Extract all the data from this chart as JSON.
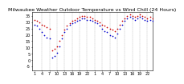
{
  "title": "Milwaukee Weather Outdoor Temperature vs Wind Chill (24 Hours)",
  "title_fontsize": 4.5,
  "x_hours": [
    1,
    2,
    3,
    4,
    5,
    6,
    7,
    8,
    9,
    10,
    11,
    12,
    13,
    14,
    15,
    16,
    17,
    18,
    19,
    20,
    21,
    22,
    23,
    24,
    25,
    26,
    27,
    28,
    29,
    30,
    31,
    32,
    33,
    34,
    35,
    36,
    37,
    38,
    39,
    40,
    41,
    42,
    43,
    44,
    45,
    46,
    47,
    48
  ],
  "temp": [
    32,
    31,
    30,
    28,
    27,
    26,
    25,
    8,
    9,
    11,
    15,
    20,
    24,
    27,
    29,
    31,
    32,
    33,
    34,
    35,
    35,
    34,
    34,
    33,
    32,
    31,
    30,
    28,
    27,
    26,
    25,
    24,
    23,
    25,
    28,
    31,
    33,
    35,
    36,
    35,
    34,
    35,
    36,
    35,
    34,
    33,
    34,
    33
  ],
  "wind_chill": [
    28,
    27,
    25,
    22,
    20,
    18,
    17,
    2,
    3,
    6,
    11,
    17,
    22,
    25,
    28,
    29,
    30,
    31,
    32,
    33,
    33,
    32,
    32,
    31,
    30,
    29,
    27,
    25,
    23,
    22,
    20,
    19,
    18,
    21,
    25,
    28,
    31,
    33,
    34,
    33,
    32,
    33,
    34,
    33,
    32,
    31,
    32,
    31
  ],
  "temp_color": "#cc0000",
  "wind_chill_color": "#0000cc",
  "bg_color": "#ffffff",
  "grid_color": "#888888",
  "ylim": [
    -8,
    38
  ],
  "ytick_vals": [
    -5,
    0,
    5,
    10,
    15,
    20,
    25,
    30,
    35
  ],
  "ytick_labels": [
    "-5",
    "0",
    "5",
    "10",
    "15",
    "20",
    "25",
    "30",
    "35"
  ],
  "xtick_positions": [
    1,
    4,
    7,
    10,
    13,
    16,
    19,
    22,
    25,
    28,
    31,
    34,
    37,
    40,
    43,
    46
  ],
  "xtick_labels": [
    "1",
    "4",
    "7",
    "10",
    "13",
    "16",
    "19",
    "22",
    "1",
    "4",
    "7",
    "10",
    "13",
    "16",
    "19",
    "22"
  ],
  "ylabel_fontsize": 3.5,
  "xlabel_fontsize": 3.5,
  "marker_size": 1.5,
  "grid_positions": [
    4,
    7,
    10,
    13,
    16,
    19,
    22,
    25,
    28,
    31,
    34,
    37,
    40,
    43,
    46
  ]
}
